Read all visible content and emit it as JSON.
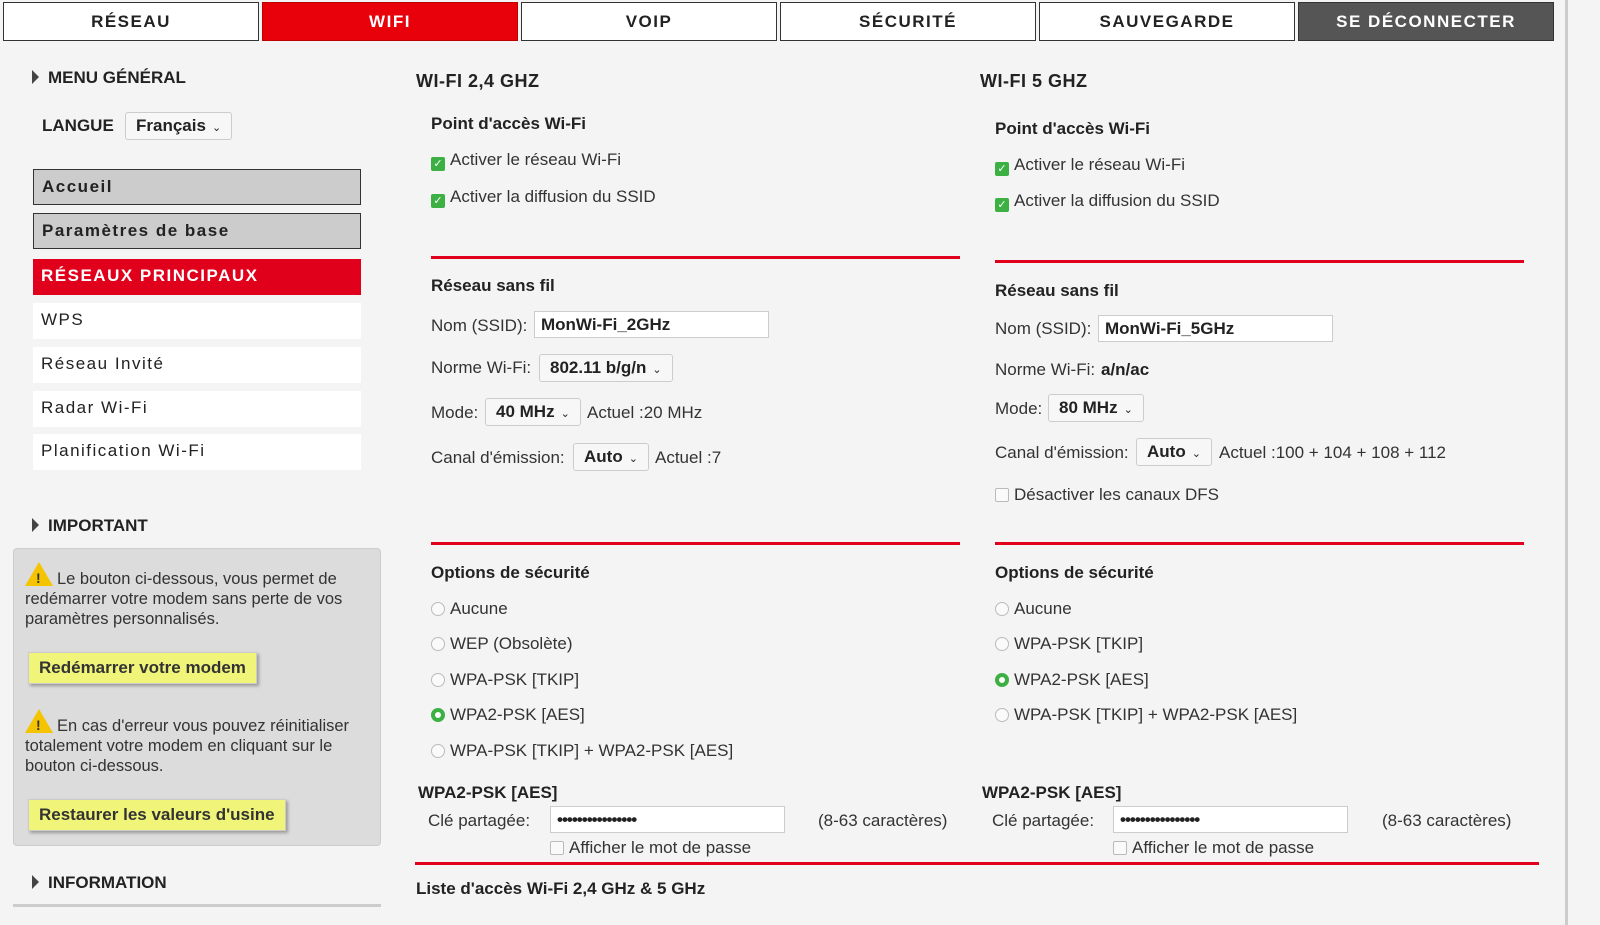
{
  "tabs": [
    {
      "label": "RÉSEAU"
    },
    {
      "label": "WIFI",
      "active": true
    },
    {
      "label": "VOIP"
    },
    {
      "label": "SÉCURITÉ"
    },
    {
      "label": "SAUVEGARDE"
    },
    {
      "label": "SE DÉCONNECTER"
    }
  ],
  "sidebar": {
    "menu_title": "MENU GÉNÉRAL",
    "language_label": "LANGUE",
    "language_value": "Français",
    "items": [
      {
        "label": "Accueil"
      },
      {
        "label": "Paramètres de base"
      },
      {
        "label": "RÉSEAUX PRINCIPAUX",
        "active": true
      },
      {
        "label": "WPS"
      },
      {
        "label": "Réseau Invité"
      },
      {
        "label": "Radar Wi-Fi"
      },
      {
        "label": "Planification Wi-Fi"
      }
    ],
    "important_title": "IMPORTANT",
    "restart_text": "Le bouton ci-dessous, vous permet de redémarrer votre modem sans perte de vos paramètres personnalisés.",
    "restart_button": "Redémarrer votre modem",
    "reset_text": "En cas d'erreur vous pouvez réinitialiser totalement votre modem en cliquant sur le bouton ci-dessous.",
    "reset_button": "Restaurer les valeurs d'usine",
    "information_title": "INFORMATION"
  },
  "wifi24": {
    "title": "WI-FI 2,4 GHZ",
    "ap_title": "Point d'accès Wi-Fi",
    "enable": "Activer le réseau Wi-Fi",
    "ssid_broadcast": "Activer la diffusion du SSID",
    "wireless_title": "Réseau sans fil",
    "ssid_label": "Nom (SSID):",
    "ssid_value": "MonWi-Fi_2GHz",
    "norm_label": "Norme Wi-Fi:",
    "norm_value": "802.11 b/g/n",
    "mode_label": "Mode:",
    "mode_value": "40 MHz",
    "mode_current": "Actuel :20 MHz",
    "channel_label": "Canal d'émission:",
    "channel_value": "Auto",
    "channel_current": "Actuel :7",
    "security_title": "Options de sécurité",
    "security_options": [
      {
        "label": "Aucune"
      },
      {
        "label": "WEP (Obsolète)"
      },
      {
        "label": "WPA-PSK [TKIP]"
      },
      {
        "label": "WPA2-PSK [AES]",
        "selected": true
      },
      {
        "label": "WPA-PSK [TKIP] + WPA2-PSK [AES]"
      }
    ],
    "key_title": "WPA2-PSK [AES]",
    "key_label": "Clé partagée:",
    "key_value": "••••••••••••••••",
    "key_hint": "(8-63 caractères)",
    "show_password": "Afficher le mot de passe"
  },
  "wifi5": {
    "title": "WI-FI 5 GHZ",
    "ap_title": "Point d'accès Wi-Fi",
    "enable": "Activer le réseau Wi-Fi",
    "ssid_broadcast": "Activer la diffusion du SSID",
    "wireless_title": "Réseau sans fil",
    "ssid_label": "Nom (SSID):",
    "ssid_value": "MonWi-Fi_5GHz",
    "norm_label": "Norme Wi-Fi:",
    "norm_value": "a/n/ac",
    "mode_label": "Mode:",
    "mode_value": "80 MHz",
    "channel_label": "Canal d'émission:",
    "channel_value": "Auto",
    "channel_current": "Actuel :100 + 104 + 108 + 112",
    "dfs": "Désactiver les canaux DFS",
    "security_title": "Options de sécurité",
    "security_options": [
      {
        "label": "Aucune"
      },
      {
        "label": "WPA-PSK [TKIP]"
      },
      {
        "label": "WPA2-PSK [AES]",
        "selected": true
      },
      {
        "label": "WPA-PSK [TKIP] + WPA2-PSK [AES]"
      }
    ],
    "key_title": "WPA2-PSK [AES]",
    "key_label": "Clé partagée:",
    "key_value": "••••••••••••••••",
    "key_hint": "(8-63 caractères)",
    "show_password": "Afficher le mot de passe"
  },
  "access_list_title": "Liste d'accès Wi-Fi 2,4 GHz & 5 GHz",
  "colors": {
    "accent": "#e0001b",
    "check": "#3cb043",
    "button_yellow": "#f0f57a"
  }
}
